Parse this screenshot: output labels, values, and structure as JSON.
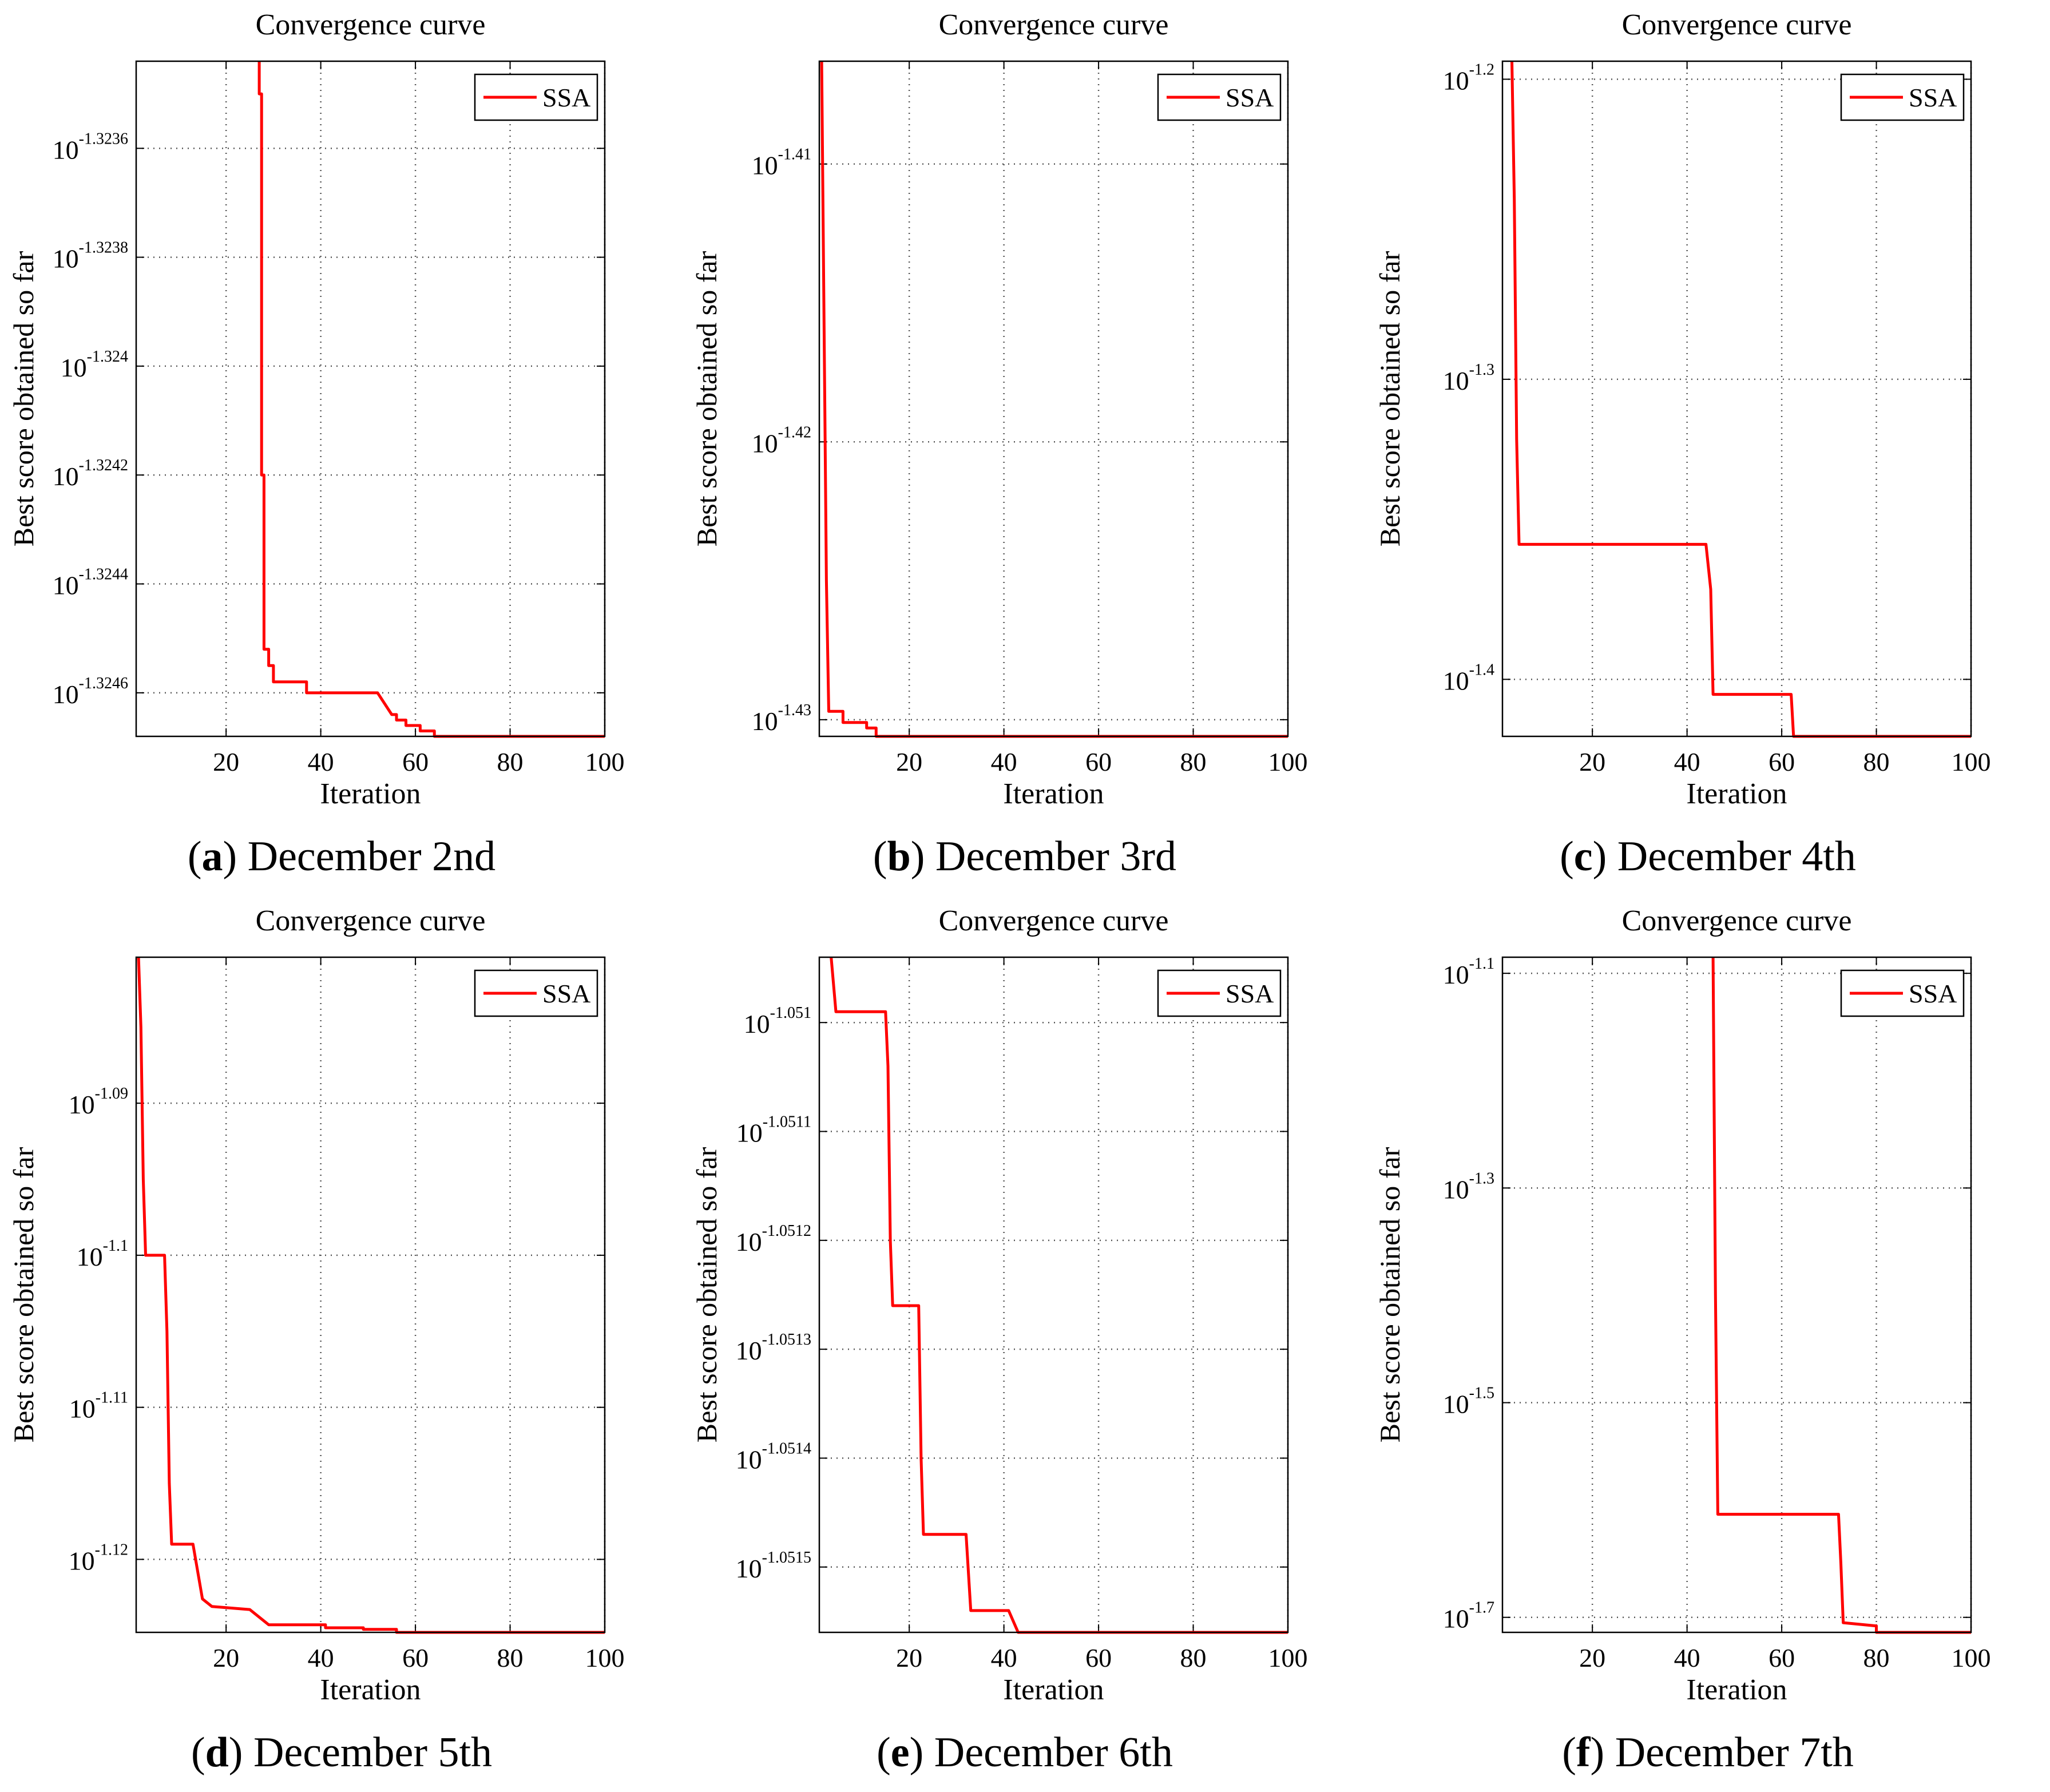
{
  "colors": {
    "series": "#ff0000",
    "axis": "#000000",
    "grid": "#555555"
  },
  "chart_data": [
    {
      "type": "line",
      "title": "Convergence curve",
      "xlabel": "Iteration",
      "ylabel": "Best score obtained so far",
      "grid": true,
      "legend": "top-right",
      "caption": {
        "letter": "a",
        "text": "December 2nd"
      },
      "xlim": [
        1,
        100
      ],
      "xticks": [
        20,
        40,
        60,
        80,
        100
      ],
      "ylim": [
        -1.32468,
        -1.32344
      ],
      "yticks": [
        {
          "value": -1.3236,
          "base": "10",
          "exp": "-1.3236"
        },
        {
          "value": -1.3238,
          "base": "10",
          "exp": "-1.3238"
        },
        {
          "value": -1.324,
          "base": "10",
          "exp": "-1.324"
        },
        {
          "value": -1.3242,
          "base": "10",
          "exp": "-1.3242"
        },
        {
          "value": -1.3244,
          "base": "10",
          "exp": "-1.3244"
        },
        {
          "value": -1.3246,
          "base": "10",
          "exp": "-1.3246"
        }
      ],
      "series": [
        {
          "name": "SSA",
          "x": [
            27,
            27,
            27.5,
            27.5,
            28,
            28,
            29,
            29,
            30,
            30,
            37,
            37,
            52,
            55,
            56,
            56,
            58,
            58,
            61,
            61,
            64,
            64,
            67,
            67,
            100
          ],
          "y": [
            -1.32344,
            -1.3235,
            -1.3235,
            -1.3242,
            -1.3242,
            -1.32452,
            -1.32452,
            -1.32455,
            -1.32455,
            -1.32458,
            -1.32458,
            -1.3246,
            -1.3246,
            -1.32464,
            -1.32464,
            -1.32465,
            -1.32465,
            -1.32466,
            -1.32466,
            -1.32467,
            -1.32467,
            -1.32468,
            -1.32468,
            -1.32468,
            -1.32468
          ]
        }
      ]
    },
    {
      "type": "line",
      "title": "Convergence curve",
      "xlabel": "Iteration",
      "ylabel": "Best score obtained so far",
      "grid": true,
      "legend": "top-right",
      "caption": {
        "letter": "b",
        "text": "December 3rd"
      },
      "xlim": [
        1,
        100
      ],
      "xticks": [
        20,
        40,
        60,
        80,
        100
      ],
      "ylim": [
        -1.4306,
        -1.4063
      ],
      "yticks": [
        {
          "value": -1.41,
          "base": "10",
          "exp": "-1.41"
        },
        {
          "value": -1.42,
          "base": "10",
          "exp": "-1.42"
        },
        {
          "value": -1.43,
          "base": "10",
          "exp": "-1.43"
        }
      ],
      "series": [
        {
          "name": "SSA",
          "x": [
            1.5,
            2.5,
            3,
            3,
            6,
            6,
            11,
            11,
            13,
            13,
            100
          ],
          "y": [
            -1.4063,
            -1.425,
            -1.4297,
            -1.4297,
            -1.4297,
            -1.4301,
            -1.4301,
            -1.4303,
            -1.4303,
            -1.4306,
            -1.4306
          ]
        }
      ]
    },
    {
      "type": "line",
      "title": "Convergence curve",
      "xlabel": "Iteration",
      "ylabel": "Best score obtained so far",
      "grid": true,
      "legend": "top-right",
      "caption": {
        "letter": "c",
        "text": "December 4th"
      },
      "xlim": [
        1,
        100
      ],
      "xticks": [
        20,
        40,
        60,
        80,
        100
      ],
      "ylim": [
        -1.419,
        -1.194
      ],
      "yticks": [
        {
          "value": -1.2,
          "base": "10",
          "exp": "-1.2"
        },
        {
          "value": -1.3,
          "base": "10",
          "exp": "-1.3"
        },
        {
          "value": -1.4,
          "base": "10",
          "exp": "-1.4"
        }
      ],
      "series": [
        {
          "name": "SSA",
          "x": [
            3,
            3.5,
            4,
            4.5,
            4.5,
            44,
            45,
            45.5,
            45.5,
            62,
            62.5,
            62.5,
            100
          ],
          "y": [
            -1.194,
            -1.24,
            -1.32,
            -1.355,
            -1.355,
            -1.355,
            -1.37,
            -1.405,
            -1.405,
            -1.405,
            -1.419,
            -1.419,
            -1.419
          ]
        }
      ]
    },
    {
      "type": "line",
      "title": "Convergence curve",
      "xlabel": "Iteration",
      "ylabel": "Best score obtained so far",
      "grid": true,
      "legend": "top-right",
      "caption": {
        "letter": "d",
        "text": "December 5th"
      },
      "xlim": [
        1,
        100
      ],
      "xticks": [
        20,
        40,
        60,
        80,
        100
      ],
      "ylim": [
        -1.1248,
        -1.0804
      ],
      "yticks": [
        {
          "value": -1.09,
          "base": "10",
          "exp": "-1.09"
        },
        {
          "value": -1.1,
          "base": "10",
          "exp": "-1.1"
        },
        {
          "value": -1.11,
          "base": "10",
          "exp": "-1.11"
        },
        {
          "value": -1.12,
          "base": "10",
          "exp": "-1.12"
        }
      ],
      "series": [
        {
          "name": "SSA",
          "x": [
            1.5,
            2,
            2.5,
            3,
            3,
            7,
            7.5,
            8,
            8.5,
            8.5,
            13,
            15,
            15,
            17,
            17,
            25,
            29,
            29,
            41,
            41,
            49,
            49,
            56,
            56,
            100
          ],
          "y": [
            -1.0804,
            -1.085,
            -1.095,
            -1.1,
            -1.1,
            -1.1,
            -1.105,
            -1.115,
            -1.119,
            -1.119,
            -1.119,
            -1.1226,
            -1.1226,
            -1.1231,
            -1.1231,
            -1.1233,
            -1.1243,
            -1.1243,
            -1.1243,
            -1.1245,
            -1.1245,
            -1.1246,
            -1.1246,
            -1.1248,
            -1.1248
          ]
        }
      ]
    },
    {
      "type": "line",
      "title": "Convergence curve",
      "xlabel": "Iteration",
      "ylabel": "Best score obtained so far",
      "grid": true,
      "legend": "top-right",
      "caption": {
        "letter": "e",
        "text": "December 6th"
      },
      "xlim": [
        1,
        100
      ],
      "xticks": [
        20,
        40,
        60,
        80,
        100
      ],
      "ylim": [
        -1.05156,
        -1.05094
      ],
      "yticks": [
        {
          "value": -1.051,
          "base": "10",
          "exp": "-1.051"
        },
        {
          "value": -1.0511,
          "base": "10",
          "exp": "-1.0511"
        },
        {
          "value": -1.0512,
          "base": "10",
          "exp": "-1.0512"
        },
        {
          "value": -1.0513,
          "base": "10",
          "exp": "-1.0513"
        },
        {
          "value": -1.0514,
          "base": "10",
          "exp": "-1.0514"
        },
        {
          "value": -1.0515,
          "base": "10",
          "exp": "-1.0515"
        }
      ],
      "series": [
        {
          "name": "SSA",
          "x": [
            3.5,
            4.5,
            5,
            5,
            15,
            15.5,
            16,
            16.5,
            17,
            17,
            22,
            22.5,
            23,
            23,
            32,
            33,
            33,
            41,
            43,
            43,
            100
          ],
          "y": [
            -1.05094,
            -1.05099,
            -1.05099,
            -1.05099,
            -1.05099,
            -1.05104,
            -1.0512,
            -1.05126,
            -1.05126,
            -1.05126,
            -1.05126,
            -1.0514,
            -1.05147,
            -1.05147,
            -1.05147,
            -1.05154,
            -1.05154,
            -1.05154,
            -1.05156,
            -1.05156,
            -1.05156
          ]
        }
      ]
    },
    {
      "type": "line",
      "title": "Convergence curve",
      "xlabel": "Iteration",
      "ylabel": "Best score obtained so far",
      "grid": true,
      "legend": "top-right",
      "caption": {
        "letter": "f",
        "text": "December 7th"
      },
      "xlim": [
        1,
        100
      ],
      "xticks": [
        20,
        40,
        60,
        80,
        100
      ],
      "ylim": [
        -1.714,
        -1.085
      ],
      "yticks": [
        {
          "value": -1.1,
          "base": "10",
          "exp": "-1.1"
        },
        {
          "value": -1.3,
          "base": "10",
          "exp": "-1.3"
        },
        {
          "value": -1.5,
          "base": "10",
          "exp": "-1.5"
        },
        {
          "value": -1.7,
          "base": "10",
          "exp": "-1.7"
        }
      ],
      "series": [
        {
          "name": "SSA",
          "x": [
            45.5,
            46,
            46.5,
            46.5,
            72,
            72.5,
            73,
            73,
            80,
            80,
            100
          ],
          "y": [
            -1.085,
            -1.4,
            -1.604,
            -1.604,
            -1.604,
            -1.65,
            -1.705,
            -1.705,
            -1.708,
            -1.714,
            -1.714
          ]
        }
      ]
    }
  ]
}
